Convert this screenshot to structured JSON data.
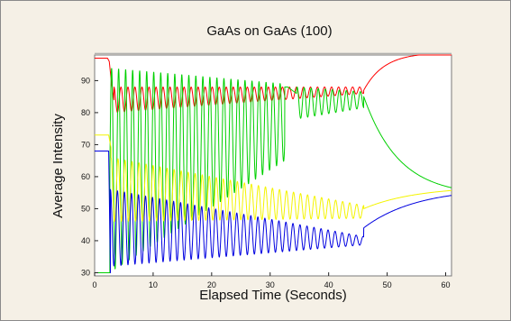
{
  "chart_data": {
    "type": "line",
    "title": "GaAs on GaAs (100)",
    "xlabel": "Elapsed Time (Seconds)",
    "ylabel": "Average Intensity",
    "xlim": [
      0,
      61
    ],
    "ylim": [
      29,
      98
    ],
    "xticks": [
      0,
      10,
      20,
      30,
      40,
      50,
      60
    ],
    "yticks": [
      30,
      40,
      50,
      60,
      70,
      80,
      90
    ],
    "grid": false,
    "legend": "none",
    "colors": {
      "panel_bg": "#f5f0e6",
      "plot_bg": "#ffffff",
      "axis": "#7a7a7a",
      "reference_line": "#9a9a9a"
    },
    "series": [
      {
        "color": "#ff0000",
        "segments": [
          {
            "kind": "poly",
            "x": [
              0,
              2.2,
              2.5,
              2.9,
              3.3
            ],
            "y": [
              97,
              97,
              96,
              89,
              84
            ]
          },
          {
            "kind": "osc",
            "x0": 3.3,
            "x1": 46,
            "period": 1.2,
            "phase": 0.5,
            "c0": 84,
            "c1": 87,
            "a0": 4,
            "a1": 1
          },
          {
            "kind": "exp",
            "x0": 46,
            "x1": 61,
            "y0": 87,
            "y1": 98.8,
            "tau": 3.5
          }
        ]
      },
      {
        "color": "#00d000",
        "segments": [
          {
            "kind": "poly",
            "x": [
              0,
              2.6
            ],
            "y": [
              30,
              30
            ]
          },
          {
            "kind": "osc",
            "x0": 2.6,
            "x1": 32.5,
            "period": 1.2,
            "phase": 0,
            "c0": 62,
            "c1": 77,
            "a0": 32,
            "a1": 12
          },
          {
            "kind": "poly",
            "x": [
              32.5,
              33,
              34.5
            ],
            "y": [
              88,
              88,
              86
            ]
          },
          {
            "kind": "osc",
            "x0": 34.5,
            "x1": 46,
            "period": 1.2,
            "phase": 0.3,
            "c0": 83,
            "c1": 84,
            "a0": 5,
            "a1": 2.5
          },
          {
            "kind": "exp",
            "x0": 46,
            "x1": 61,
            "y0": 85,
            "y1": 54,
            "tau": 6
          }
        ]
      },
      {
        "color": "#f4f400",
        "segments": [
          {
            "kind": "poly",
            "x": [
              0,
              2.4,
              2.8
            ],
            "y": [
              73,
              73,
              69
            ]
          },
          {
            "kind": "osc",
            "x0": 2.8,
            "x1": 46,
            "period": 1.2,
            "phase": 0.5,
            "c0": 56,
            "c1": 49,
            "a0": 10,
            "a1": 2
          },
          {
            "kind": "exp",
            "x0": 46,
            "x1": 61,
            "y0": 50,
            "y1": 57,
            "tau": 9
          }
        ]
      },
      {
        "color": "#0000e0",
        "segments": [
          {
            "kind": "poly",
            "x": [
              0,
              2.4,
              2.7
            ],
            "y": [
              68,
              68,
              30
            ]
          },
          {
            "kind": "osc",
            "x0": 2.7,
            "x1": 46,
            "period": 1.2,
            "phase": 0.5,
            "c0": 44,
            "c1": 40,
            "a0": 12,
            "a1": 1.3
          },
          {
            "kind": "exp",
            "x0": 46,
            "x1": 61,
            "y0": 44,
            "y1": 56.5,
            "tau": 9
          }
        ]
      }
    ],
    "reference_lines": [
      {
        "orientation": "horizontal",
        "y": 98.5
      }
    ]
  }
}
